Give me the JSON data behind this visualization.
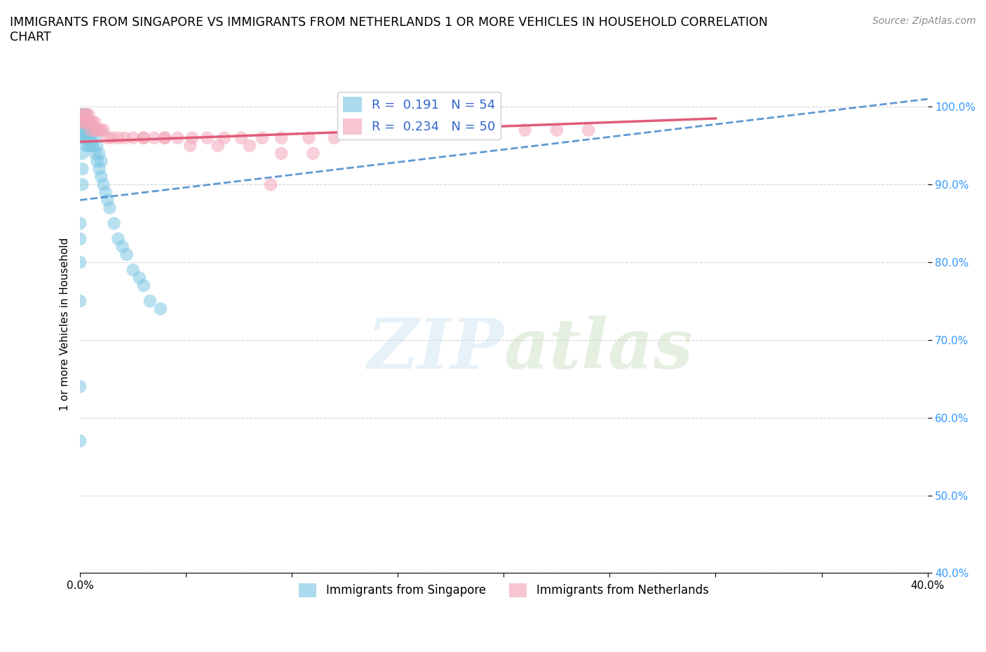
{
  "title": "IMMIGRANTS FROM SINGAPORE VS IMMIGRANTS FROM NETHERLANDS 1 OR MORE VEHICLES IN HOUSEHOLD CORRELATION\nCHART",
  "source": "Source: ZipAtlas.com",
  "ylabel": "1 or more Vehicles in Household",
  "xlim": [
    0.0,
    0.4
  ],
  "ylim": [
    0.4,
    1.04
  ],
  "yticks": [
    0.4,
    0.5,
    0.6,
    0.7,
    0.8,
    0.9,
    1.0
  ],
  "ytick_labels": [
    "40.0%",
    "50.0%",
    "60.0%",
    "70.0%",
    "80.0%",
    "90.0%",
    "100.0%"
  ],
  "xticks": [
    0.0,
    0.05,
    0.1,
    0.15,
    0.2,
    0.25,
    0.3,
    0.35,
    0.4
  ],
  "xtick_labels": [
    "0.0%",
    "",
    "",
    "",
    "",
    "",
    "",
    "",
    "40.0%"
  ],
  "R_singapore": 0.191,
  "N_singapore": 54,
  "R_netherlands": 0.234,
  "N_netherlands": 50,
  "color_singapore": "#7ec8e3",
  "color_netherlands": "#f4a7b9",
  "line_color_singapore": "#4488cc",
  "line_color_netherlands": "#e05c7a",
  "background_color": "#ffffff",
  "sg_x": [
    0.001,
    0.001,
    0.001,
    0.001,
    0.002,
    0.002,
    0.002,
    0.002,
    0.003,
    0.003,
    0.003,
    0.003,
    0.003,
    0.004,
    0.004,
    0.004,
    0.004,
    0.005,
    0.005,
    0.005,
    0.005,
    0.006,
    0.006,
    0.007,
    0.007,
    0.008,
    0.008,
    0.009,
    0.009,
    0.01,
    0.01,
    0.011,
    0.012,
    0.013,
    0.014,
    0.016,
    0.018,
    0.02,
    0.022,
    0.025,
    0.028,
    0.03,
    0.033,
    0.038,
    0.0,
    0.0,
    0.0,
    0.0,
    0.0,
    0.0,
    0.001,
    0.001,
    0.001,
    0.002
  ],
  "sg_y": [
    0.99,
    0.98,
    0.97,
    0.96,
    0.99,
    0.98,
    0.97,
    0.96,
    0.99,
    0.98,
    0.97,
    0.96,
    0.95,
    0.98,
    0.97,
    0.96,
    0.95,
    0.98,
    0.97,
    0.96,
    0.95,
    0.97,
    0.95,
    0.96,
    0.94,
    0.95,
    0.93,
    0.94,
    0.92,
    0.93,
    0.91,
    0.9,
    0.89,
    0.88,
    0.87,
    0.85,
    0.83,
    0.82,
    0.81,
    0.79,
    0.78,
    0.77,
    0.75,
    0.74,
    0.85,
    0.83,
    0.8,
    0.75,
    0.64,
    0.57,
    0.94,
    0.92,
    0.9,
    0.96
  ],
  "nl_x": [
    0.001,
    0.001,
    0.002,
    0.002,
    0.003,
    0.003,
    0.004,
    0.004,
    0.005,
    0.005,
    0.006,
    0.007,
    0.007,
    0.008,
    0.009,
    0.01,
    0.011,
    0.013,
    0.015,
    0.018,
    0.021,
    0.025,
    0.03,
    0.035,
    0.04,
    0.046,
    0.053,
    0.06,
    0.068,
    0.076,
    0.086,
    0.095,
    0.108,
    0.12,
    0.135,
    0.15,
    0.165,
    0.18,
    0.195,
    0.21,
    0.225,
    0.24,
    0.09,
    0.03,
    0.04,
    0.052,
    0.065,
    0.08,
    0.095,
    0.11
  ],
  "nl_y": [
    0.99,
    0.98,
    0.99,
    0.98,
    0.99,
    0.98,
    0.99,
    0.98,
    0.98,
    0.97,
    0.98,
    0.98,
    0.97,
    0.97,
    0.97,
    0.97,
    0.97,
    0.96,
    0.96,
    0.96,
    0.96,
    0.96,
    0.96,
    0.96,
    0.96,
    0.96,
    0.96,
    0.96,
    0.96,
    0.96,
    0.96,
    0.96,
    0.96,
    0.96,
    0.97,
    0.97,
    0.97,
    0.97,
    0.97,
    0.97,
    0.97,
    0.97,
    0.9,
    0.96,
    0.96,
    0.95,
    0.95,
    0.95,
    0.94,
    0.94
  ],
  "sg_line_x": [
    0.0,
    0.4
  ],
  "sg_line_y": [
    0.88,
    1.01
  ],
  "nl_line_x": [
    0.0,
    0.3
  ],
  "nl_line_y": [
    0.955,
    0.985
  ]
}
